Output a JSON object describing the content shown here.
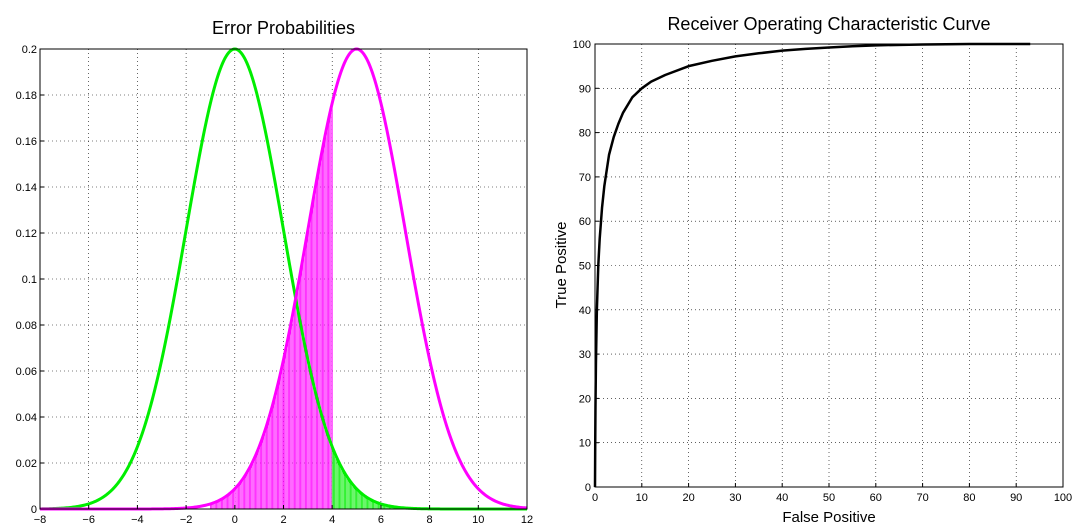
{
  "chart_data": [
    {
      "type": "line",
      "title": "Error Probabilities",
      "xlabel": "",
      "ylabel": "",
      "xlim": [
        -8,
        12
      ],
      "ylim": [
        0,
        0.2
      ],
      "xticks": [
        "−8",
        "−6",
        "−4",
        "−2",
        "0",
        "2",
        "4",
        "6",
        "8",
        "10",
        "12"
      ],
      "yticks": [
        "0",
        "0.02",
        "0.04",
        "0.06",
        "0.08",
        "0.1",
        "0.12",
        "0.14",
        "0.16",
        "0.18",
        "0.2"
      ],
      "grid": true,
      "series": [
        {
          "distribution": "gaussian",
          "mean": 0,
          "std": 2,
          "peak": 0.2,
          "color": "#00ee00"
        },
        {
          "distribution": "gaussian",
          "mean": 5,
          "std": 2,
          "peak": 0.2,
          "color": "#ff00ff"
        }
      ],
      "threshold": 4,
      "shaded_regions": [
        {
          "under": "magenta",
          "x_from": -1,
          "x_to": 4,
          "color": "#ff00ff"
        },
        {
          "under": "green",
          "x_from": 4,
          "x_to": 12,
          "color": "#00ee00"
        }
      ]
    },
    {
      "type": "line",
      "title": "Receiver Operating Characteristic Curve",
      "xlabel": "False Positive",
      "ylabel": "True Positive",
      "xlim": [
        0,
        100
      ],
      "ylim": [
        0,
        100
      ],
      "xticks": [
        "0",
        "10",
        "20",
        "30",
        "40",
        "50",
        "60",
        "70",
        "80",
        "90",
        "100"
      ],
      "yticks": [
        "0",
        "10",
        "20",
        "30",
        "40",
        "50",
        "60",
        "70",
        "80",
        "90",
        "100"
      ],
      "grid": true,
      "series": [
        {
          "color": "#000000",
          "x": [
            0,
            0.05,
            0.1,
            0.2,
            0.4,
            0.7,
            1,
            1.5,
            2,
            3,
            4,
            5,
            6,
            8,
            10,
            12,
            15,
            20,
            25,
            30,
            35,
            40,
            45,
            50,
            55,
            60,
            70,
            80,
            93
          ],
          "y": [
            0,
            10,
            18,
            28,
            40,
            50,
            56,
            63,
            68,
            75,
            79,
            82,
            84.5,
            88,
            90,
            91.5,
            93,
            95,
            96.2,
            97.2,
            97.9,
            98.5,
            98.9,
            99.2,
            99.5,
            99.7,
            99.9,
            100,
            100
          ]
        }
      ]
    }
  ]
}
